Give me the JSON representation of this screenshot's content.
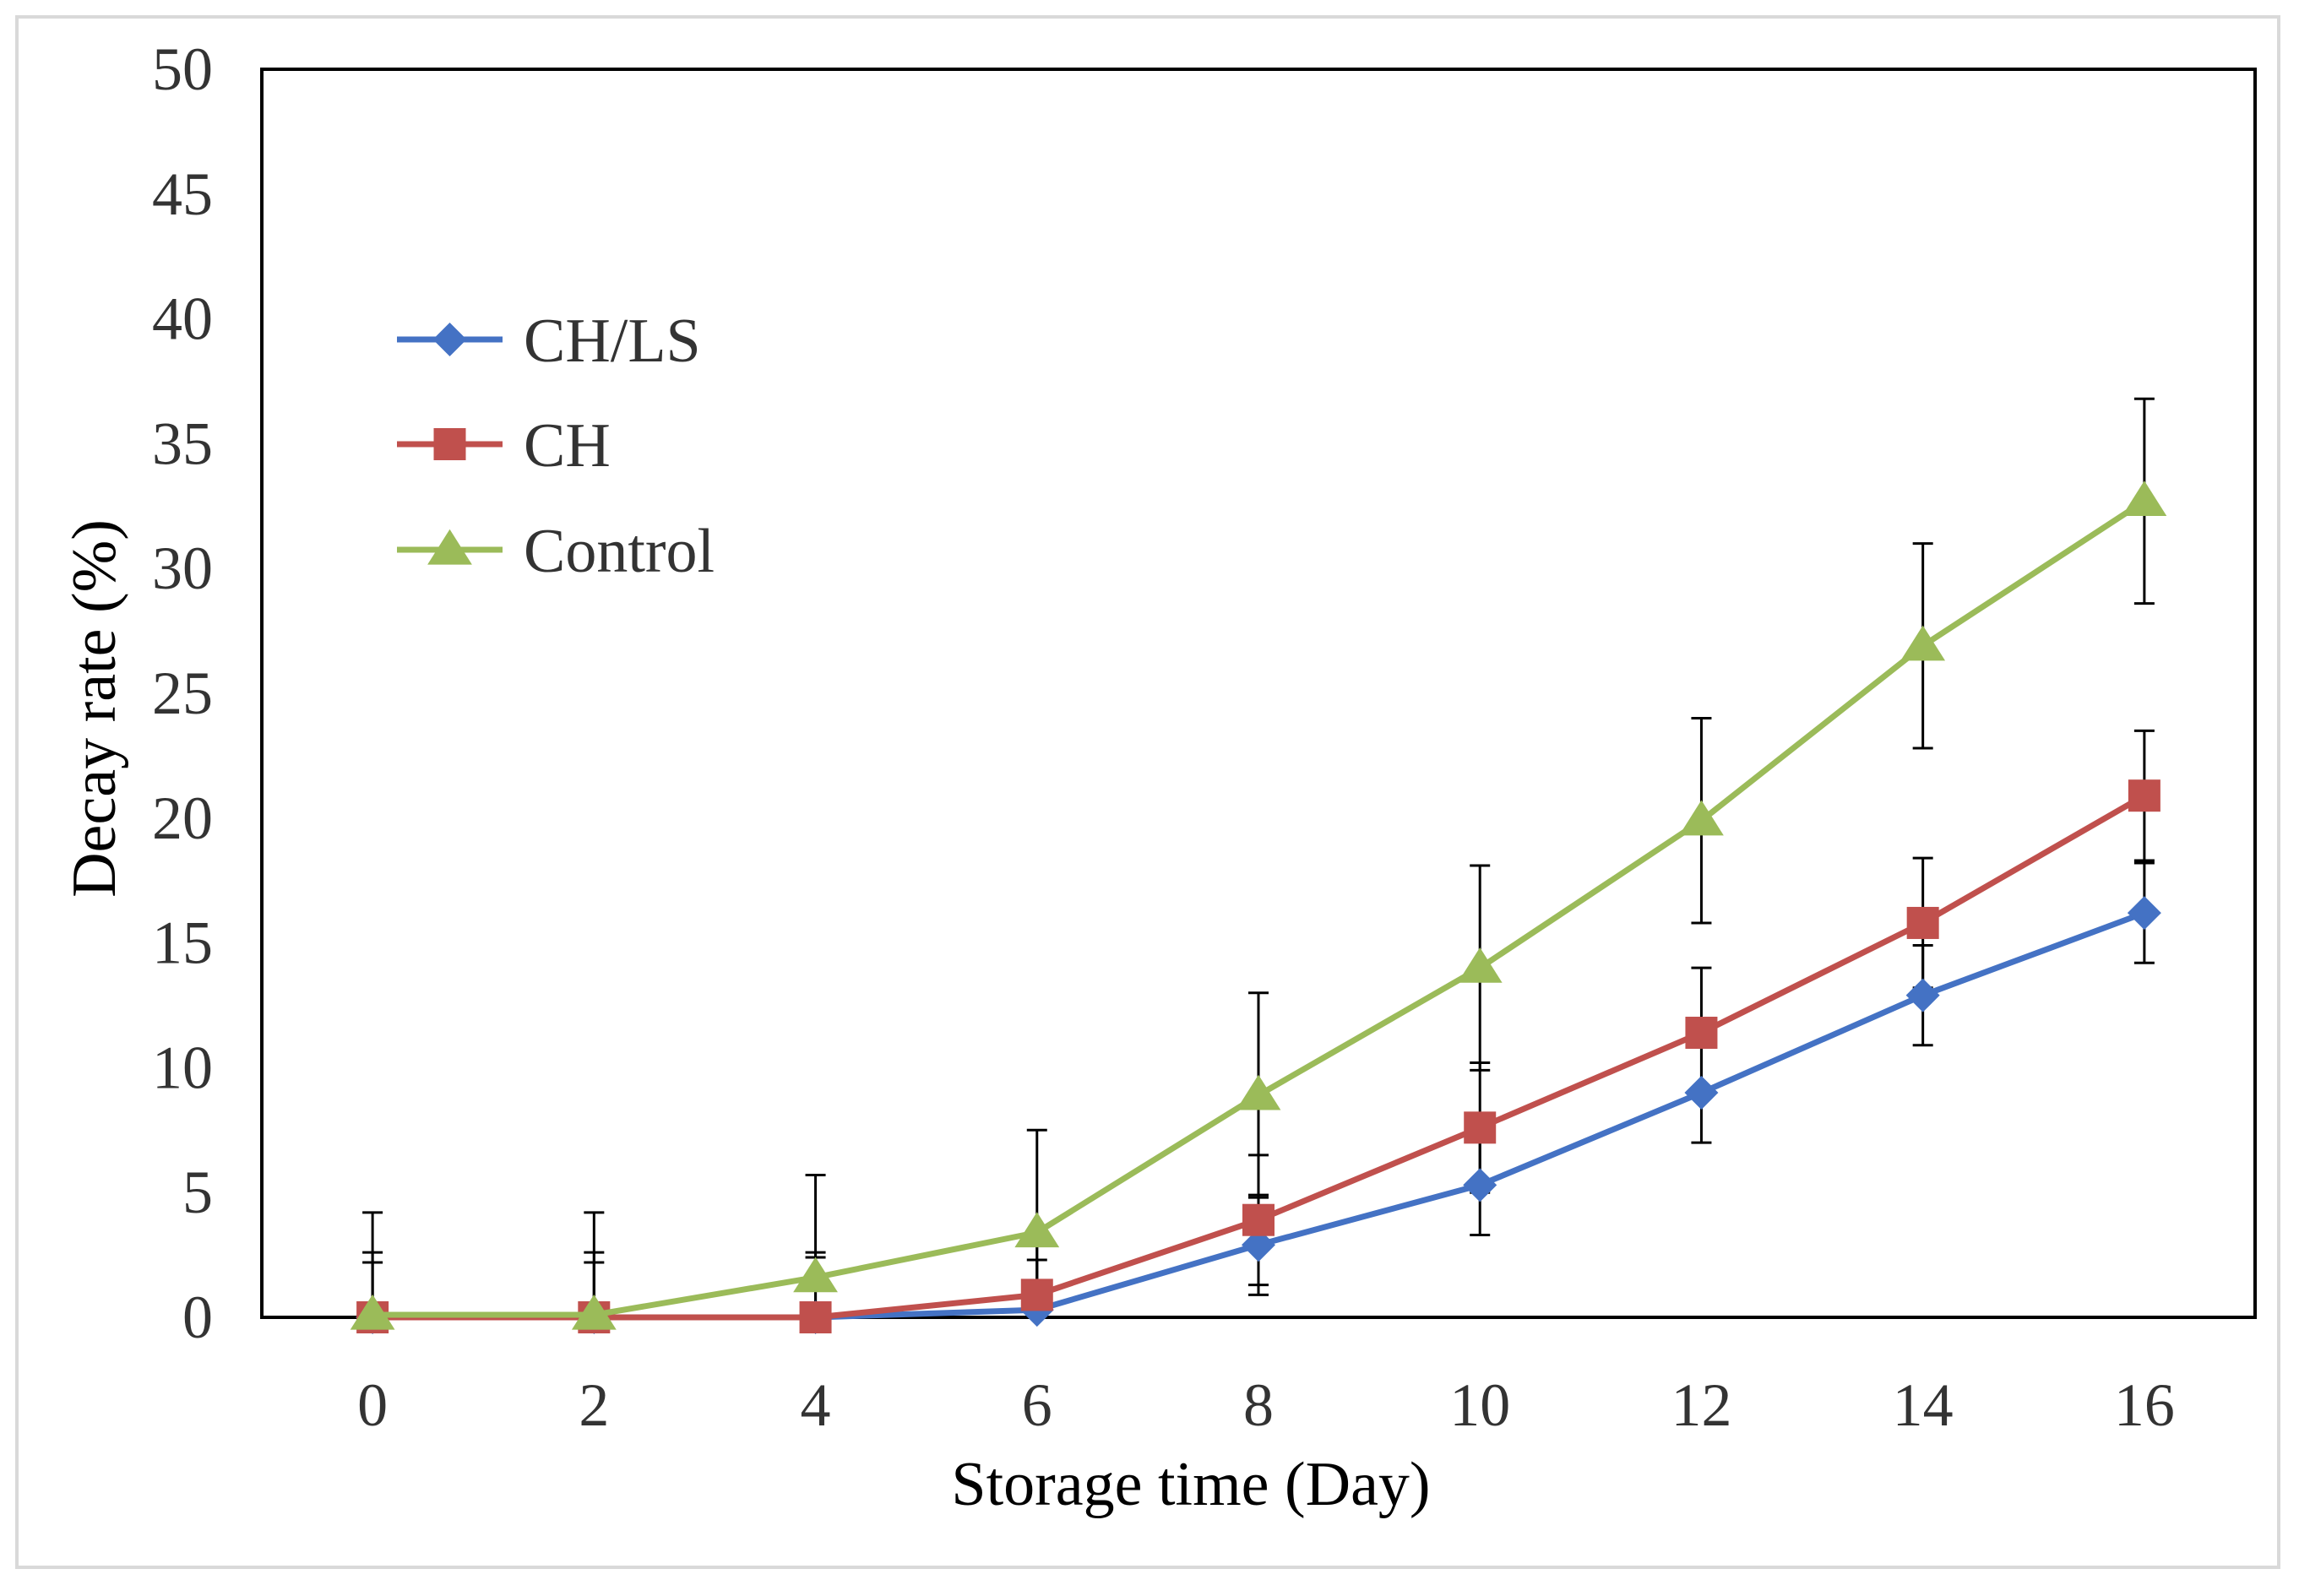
{
  "chart_data": {
    "type": "line",
    "xlabel": "Storage time (Day)",
    "ylabel": "Decay rate (%)",
    "x": [
      0,
      2,
      4,
      6,
      8,
      10,
      12,
      14,
      16
    ],
    "xlim": [
      -1,
      17
    ],
    "ylim": [
      0,
      50
    ],
    "xticks": [
      0,
      2,
      4,
      6,
      8,
      10,
      12,
      14,
      16
    ],
    "yticks": [
      0,
      5,
      10,
      15,
      20,
      25,
      30,
      35,
      40,
      45,
      50
    ],
    "grid": false,
    "legend_position": "top-left",
    "series": [
      {
        "name": "CH/LS",
        "color": "#4472C4",
        "marker": "diamond",
        "values": [
          0,
          0,
          0,
          0.3,
          2.9,
          5.3,
          9.0,
          12.9,
          16.2
        ],
        "errors": [
          2.2,
          2.2,
          2.4,
          2.0,
          2.0,
          2.0,
          2.0,
          2.0,
          2.0
        ]
      },
      {
        "name": "CH",
        "color": "#C0504D",
        "marker": "square",
        "values": [
          0,
          0,
          0,
          0.9,
          3.9,
          7.6,
          11.4,
          15.8,
          20.9
        ],
        "errors": [
          2.6,
          2.6,
          2.6,
          2.6,
          2.6,
          2.6,
          2.6,
          2.6,
          2.6
        ]
      },
      {
        "name": "Control",
        "color": "#9BBB59",
        "marker": "triangle",
        "values": [
          0.1,
          0.1,
          1.6,
          3.4,
          8.9,
          14.0,
          19.9,
          26.9,
          32.7
        ],
        "errors": [
          4.1,
          4.1,
          4.1,
          4.1,
          4.1,
          4.1,
          4.1,
          4.1,
          4.1
        ]
      }
    ]
  }
}
